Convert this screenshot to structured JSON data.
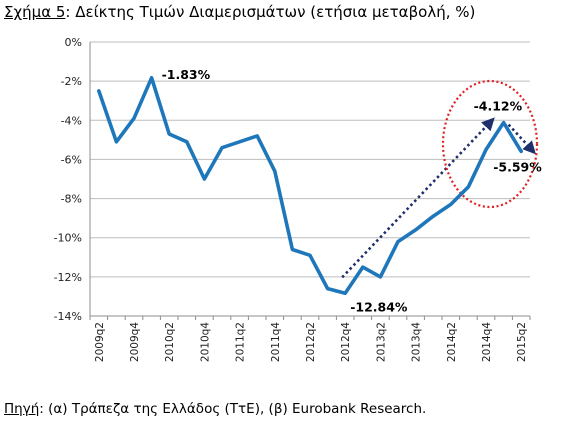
{
  "title": {
    "prefix": "Σχήμα 5",
    "text": ": Δείκτης Τιμών Διαμερισμάτων (ετήσια μεταβολή, %)"
  },
  "source": {
    "prefix": "Πηγή",
    "text": ": (α) Τράπεζα της Ελλάδος (ΤτΕ), (β) Eurobank Research."
  },
  "chart_data": {
    "type": "line",
    "title": "Δείκτης Τιμών Διαμερισμάτων (ετήσια μεταβολή, %)",
    "ylim": [
      -14,
      0
    ],
    "yticks": [
      0,
      -2,
      -4,
      -6,
      -8,
      -10,
      -12,
      -14
    ],
    "ytick_labels": [
      "0%",
      "-2%",
      "-4%",
      "-6%",
      "-8%",
      "-10%",
      "-12%",
      "-14%"
    ],
    "xtick_labels": [
      "2009q2",
      "2009q4",
      "2010q2",
      "2010q4",
      "2011q2",
      "2011q4",
      "2012q2",
      "2012q4",
      "2013q2",
      "2013q4",
      "2014q2",
      "2014q4",
      "2015q2"
    ],
    "grid": true,
    "line_color": "#1f77bb",
    "series": [
      {
        "x": [
          "2009q2",
          "2009q3",
          "2009q4",
          "2010q1",
          "2010q2",
          "2010q3",
          "2010q4",
          "2011q1",
          "2011q2",
          "2011q3",
          "2011q4",
          "2012q1",
          "2012q2",
          "2012q3",
          "2012q4",
          "2013q1",
          "2013q2",
          "2013q3",
          "2013q4",
          "2014q1",
          "2014q2",
          "2014q3",
          "2014q4",
          "2015q1",
          "2015q2"
        ],
        "values": [
          -2.5,
          -5.1,
          -3.9,
          -1.83,
          -4.7,
          -5.1,
          -7.0,
          -5.4,
          -5.1,
          -4.8,
          -6.6,
          -10.6,
          -10.9,
          -12.6,
          -12.84,
          -11.5,
          -12.0,
          -10.2,
          -9.6,
          -8.9,
          -8.3,
          -7.4,
          -5.5,
          -4.12,
          -5.59
        ]
      }
    ],
    "annotations": [
      {
        "label": "-1.83%",
        "x": "2010q1"
      },
      {
        "label": "-12.84%",
        "x": "2012q4"
      },
      {
        "label": "-4.12%",
        "x": "2015q1"
      },
      {
        "label": "-5.59%",
        "x": "2015q2"
      }
    ],
    "arrow_color": "#1f2f6b",
    "highlight_color": "#e02020"
  }
}
